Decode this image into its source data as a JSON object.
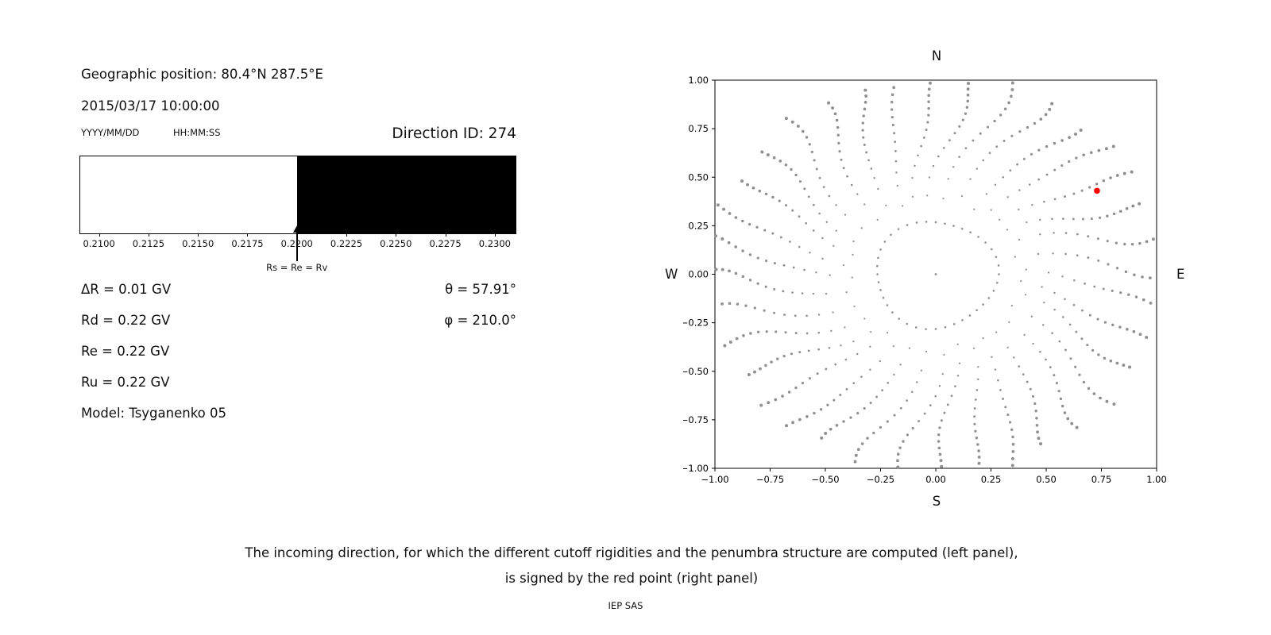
{
  "header": {
    "geo_position": "Geographic position: 80.4°N 287.5°E",
    "datetime": "2015/03/17 10:00:00",
    "date_format_label": "YYYY/MM/DD",
    "time_format_label": "HH:MM:SS",
    "direction_id": "Direction ID: 274"
  },
  "left_panel": {
    "arrow_label": "Rs = Re = Rv",
    "params": [
      "ΔR = 0.01 GV",
      "Rd = 0.22 GV",
      "Re = 0.22 GV",
      "Ru = 0.22 GV",
      "Model: Tsyganenko 05"
    ],
    "theta": "θ = 57.91°",
    "phi": "φ = 210.0°"
  },
  "caption": {
    "line1": "The incoming direction, for which the different cutoff rigidities and the penumbra structure are computed (left panel),",
    "line2": "is signed by the red point (right panel)",
    "credit": "IEP SAS"
  },
  "chart_data": [
    {
      "type": "bar",
      "name": "penumbra-structure-strip",
      "xlim": [
        0.20905,
        0.23105
      ],
      "x_ticks": [
        0.21,
        0.2125,
        0.215,
        0.2175,
        0.22,
        0.2225,
        0.225,
        0.2275,
        0.23
      ],
      "x_tick_labels": [
        "0.2100",
        "0.2125",
        "0.2150",
        "0.2175",
        "0.2200",
        "0.2225",
        "0.2250",
        "0.2275",
        "0.2300"
      ],
      "segments": [
        {
          "from": 0.20905,
          "to": 0.22,
          "color": "#ffffff"
        },
        {
          "from": 0.22,
          "to": 0.23105,
          "color": "#000000"
        }
      ],
      "arrow": {
        "x": 0.22,
        "label": "Rs = Re = Rv"
      }
    },
    {
      "type": "scatter",
      "name": "incoming-direction-map",
      "xlim": [
        -1,
        1
      ],
      "ylim": [
        -1,
        1
      ],
      "x_tick_labels": [
        "−1.00",
        "−0.75",
        "−0.50",
        "−0.25",
        "0.00",
        "0.25",
        "0.50",
        "0.75",
        "1.00"
      ],
      "y_tick_labels": [
        "1.00",
        "0.75",
        "0.50",
        "0.25",
        "0.00",
        "−0.25",
        "−0.50",
        "−0.75",
        "−1.00"
      ],
      "compass": {
        "top": "N",
        "bottom": "S",
        "left": "W",
        "right": "E"
      },
      "point_color": "#8f8f8f",
      "red_point": {
        "x": 0.73,
        "y": 0.43,
        "color": "#ff0000"
      },
      "pattern": {
        "spokes": 36,
        "points_per_spoke": 15,
        "r_inner": 0.37,
        "r_outer": 1.02,
        "bend_deg": 14,
        "radial_exponent": 0.7,
        "ring_radius": 0.275,
        "ring_points": 40,
        "center_point": true
      }
    }
  ]
}
